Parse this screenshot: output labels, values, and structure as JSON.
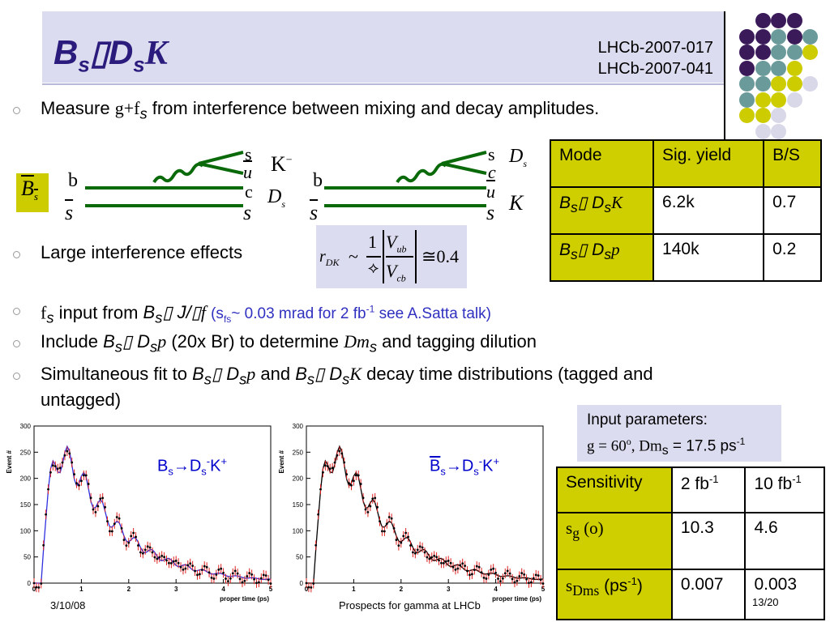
{
  "header": {
    "title_main": "B",
    "title_sub_s1": "s",
    "title_arrow": "",
    "title_d": "D",
    "title_sub_s2": "s",
    "title_k": "K",
    "ref1": "LHCb-2007-017",
    "ref2": "LHCb-2007-041"
  },
  "bullets": {
    "b1_pre": "Measure ",
    "b1_sym": "g+f",
    "b1_sub": "s",
    "b1_post": " from interference between mixing and decay amplitudes.",
    "b2": "Large interference effects",
    "b3_f": "f",
    "b3_sub": "s",
    "b3_text": " input from ",
    "b3_decay_b": "B",
    "b3_decay_sub": "s",
    "b3_decay_rest": " J/",
    "b3_decay_f": "f",
    "b3_note_pre": "(s",
    "b3_note_sub": "fs",
    "b3_note_post": "~ 0.03 mrad for 2 fb",
    "b3_note_sup": "-1",
    "b3_note_end": " see A.Satta talk)",
    "b4_pre": "Include ",
    "b4_b": "B",
    "b4_s1": "s",
    "b4_d": " D",
    "b4_s2": "s",
    "b4_p": "p",
    "b4_mid": " (20x Br) to determine ",
    "b4_dm": "Dm",
    "b4_dms": "s",
    "b4_post": " and tagging dilution",
    "b5_pre": "Simultaneous fit to ",
    "b5_b1": "B",
    "b5_s1": "s",
    "b5_d1": " D",
    "b5_s1b": "s",
    "b5_p": "p",
    "b5_and": " and ",
    "b5_b2": "B",
    "b5_s2": "s",
    "b5_d2": " D",
    "b5_s2b": "s",
    "b5_k": "K",
    "b5_post": " decay time distributions (tagged and",
    "b5_line2": "untagged)"
  },
  "diagram": {
    "bs_bar": "B",
    "bs_bar_sub": "s",
    "left_b": "b",
    "left_sbar": "s",
    "left_s": "s",
    "left_ubar": "u",
    "left_c": "c",
    "left_s2": "s",
    "left_k": "K",
    "left_k_sup": "−",
    "left_ds": "D",
    "left_ds_sub": "s",
    "right_b": "b",
    "right_sbar": "s",
    "right_s": "s",
    "right_c": "c",
    "right_ubar": "u",
    "right_s2": "s",
    "right_ds": "D",
    "right_ds_sub": "s",
    "right_k": "K"
  },
  "rdk": {
    "r": "r",
    "r_sub": "DK",
    "tilde": "~",
    "one": "1",
    "vub": "V",
    "vub_sub": "ub",
    "vcb": "V",
    "vcb_sub": "cb",
    "val": "0.4"
  },
  "mode_table": {
    "headers": [
      "Mode",
      "Sig. yield",
      "B/S"
    ],
    "rows": [
      {
        "mode_b": "B",
        "mode_s": "s",
        "mode_d": " D",
        "mode_s2": "s",
        "mode_f": "K",
        "yield": "6.2k",
        "bs": "0.7"
      },
      {
        "mode_b": "B",
        "mode_s": "s",
        "mode_d": " D",
        "mode_s2": "s",
        "mode_f": "p",
        "yield": "140k",
        "bs": "0.2"
      }
    ]
  },
  "input_params": {
    "line1": "Input parameters:",
    "g": "g",
    "g_val": " = 60",
    "g_unit": "o",
    "dm": ", Dm",
    "dm_sub": "s",
    "dm_val": " = 17.5 ps",
    "dm_sup": "-1"
  },
  "sens_table": {
    "h0": "Sensitivity",
    "h1": "2 fb",
    "h1_sup": "-1",
    "h2": "10 fb",
    "h2_sup": "-1",
    "r1_label": "s",
    "r1_label_sub": "g",
    "r1_unit": " (o)",
    "r1_v1": "10.3",
    "r1_v2": "4.6",
    "r2_label": "s",
    "r2_label_sub": "Dms",
    "r2_unit": " (ps",
    "r2_unit_sup": "-1",
    "r2_unit_end": ")",
    "r2_v1": "0.007",
    "r2_v2": "0.003"
  },
  "plots": {
    "left_label_b": "B",
    "left_label_s": "s",
    "left_label_arrow": "→D",
    "left_label_s2": "s",
    "left_label_sup": "-",
    "left_label_k": "K",
    "left_label_ksup": "+",
    "right_label_b": "B",
    "right_label_s": "s",
    "right_label_arrow": "→D",
    "right_label_s2": "s",
    "right_label_sup": "-",
    "right_label_k": "K",
    "right_label_ksup": "+",
    "ylabel": "Event #",
    "xlabel": "proper time (ps)",
    "yticks": [
      "0",
      "50",
      "100",
      "150",
      "200",
      "250",
      "300"
    ],
    "xticks": [
      "0",
      "1",
      "2",
      "3",
      "4",
      "5"
    ]
  },
  "footer": {
    "date": "3/10/08",
    "title": "Prospects for gamma at LHCb",
    "page": "13/20"
  },
  "colors": {
    "purple": "#3b1a5a",
    "teal": "#6a9a9a",
    "lime": "#cccc00",
    "lavender": "#d8d8e8"
  }
}
